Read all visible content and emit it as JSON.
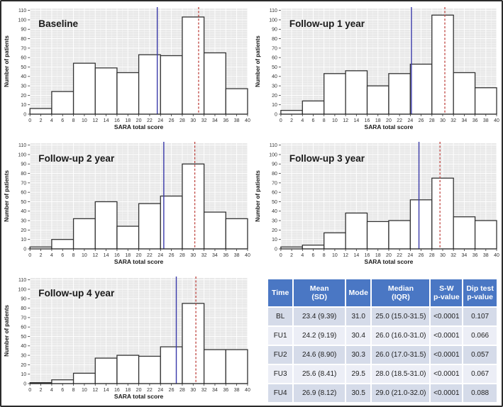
{
  "figure": {
    "xlabel": "SARA total score",
    "ylabel": "Number of patients"
  },
  "axes": {
    "xlim": [
      0,
      40
    ],
    "ylim": [
      0,
      112
    ],
    "x_ticks": [
      0,
      2,
      4,
      6,
      8,
      10,
      12,
      14,
      16,
      18,
      20,
      22,
      24,
      26,
      28,
      30,
      32,
      34,
      36,
      38,
      40
    ],
    "y_ticks": [
      0,
      10,
      20,
      30,
      40,
      50,
      60,
      70,
      80,
      90,
      100,
      110
    ],
    "grid": true,
    "legend": "none"
  },
  "chart_data": [
    {
      "type": "bar",
      "id": "baseline",
      "title": "Baseline",
      "xlabel": "SARA total score",
      "ylabel": "Number of patients",
      "bin_start": 0,
      "bin_width": 4,
      "categories": [
        "0-4",
        "4-8",
        "8-12",
        "12-16",
        "16-20",
        "20-24",
        "24-28",
        "28-32",
        "32-36",
        "36-40"
      ],
      "values": [
        6,
        24,
        54,
        49,
        44,
        63,
        62,
        103,
        65,
        27
      ],
      "mean_line": 23.4,
      "mode_line": 31.0
    },
    {
      "type": "bar",
      "id": "followup-1-year",
      "title": "Follow-up 1 year",
      "xlabel": "SARA total score",
      "ylabel": "Number of patients",
      "bin_start": 0,
      "bin_width": 4,
      "categories": [
        "0-4",
        "4-8",
        "8-12",
        "12-16",
        "16-20",
        "20-24",
        "24-28",
        "28-32",
        "32-36",
        "36-40"
      ],
      "values": [
        4,
        14,
        43,
        46,
        30,
        43,
        53,
        105,
        44,
        28
      ],
      "mean_line": 24.2,
      "mode_line": 30.4
    },
    {
      "type": "bar",
      "id": "followup-2-year",
      "title": "Follow-up 2 year",
      "xlabel": "SARA total score",
      "ylabel": "Number of patients",
      "bin_start": 0,
      "bin_width": 4,
      "categories": [
        "0-4",
        "4-8",
        "8-12",
        "12-16",
        "16-20",
        "20-24",
        "24-28",
        "28-32",
        "32-36",
        "36-40"
      ],
      "values": [
        2,
        10,
        32,
        50,
        24,
        48,
        56,
        90,
        39,
        32
      ],
      "mean_line": 24.6,
      "mode_line": 30.3
    },
    {
      "type": "bar",
      "id": "followup-3-year",
      "title": "Follow-up 3 year",
      "xlabel": "SARA total score",
      "ylabel": "Number of patients",
      "bin_start": 0,
      "bin_width": 4,
      "categories": [
        "0-4",
        "4-8",
        "8-12",
        "12-16",
        "16-20",
        "20-24",
        "24-28",
        "28-32",
        "32-36",
        "36-40"
      ],
      "values": [
        2,
        4,
        17,
        38,
        29,
        30,
        52,
        75,
        34,
        30
      ],
      "mean_line": 25.6,
      "mode_line": 29.5
    },
    {
      "type": "bar",
      "id": "followup-4-year",
      "title": "Follow-up 4 year",
      "xlabel": "SARA total score",
      "ylabel": "Number of patients",
      "bin_start": 0,
      "bin_width": 4,
      "categories": [
        "0-4",
        "4-8",
        "8-12",
        "12-16",
        "16-20",
        "20-24",
        "24-28",
        "28-32",
        "32-36",
        "36-40"
      ],
      "values": [
        1,
        4,
        11,
        27,
        30,
        29,
        39,
        85,
        36,
        36
      ],
      "mean_line": 26.9,
      "mode_line": 30.5
    }
  ],
  "table": {
    "headers": [
      "Time",
      "Mean\n(SD)",
      "Mode",
      "Median\n(IQR)",
      "S-W\np-value",
      "Dip test\np-value"
    ],
    "rows": [
      [
        "BL",
        "23.4 (9.39)",
        "31.0",
        "25.0 (15.0-31.5)",
        "<0.0001",
        "0.107"
      ],
      [
        "FU1",
        "24.2 (9.19)",
        "30.4",
        "26.0 (16.0-31.0)",
        "<0.0001",
        "0.066"
      ],
      [
        "FU2",
        "24.6 (8.90)",
        "30.3",
        "26.0 (17.0-31.5)",
        "<0.0001",
        "0.057"
      ],
      [
        "FU3",
        "25.6 (8.41)",
        "29.5",
        "28.0 (18.5-31.0)",
        "<0.0001",
        "0.067"
      ],
      [
        "FU4",
        "26.9 (8.12)",
        "30.5",
        "29.0 (21.0-32.0)",
        "<0.0001",
        "0.088"
      ]
    ]
  },
  "colors": {
    "panel_bg": "#e9e9e9",
    "grid_major": "#ffffff",
    "grid_minor": "#f2f2f2",
    "bar_fill": "#ffffff",
    "bar_stroke": "#333333",
    "mean_line": "#3b3baa",
    "mode_line": "#bf4540",
    "axis_line": "#1a1a1a",
    "tick_text": "#333333",
    "title_text": "#1a1a1a",
    "header_bg": "#4a77c4",
    "header_text": "#ffffff",
    "row_odd": "#d5dbe9",
    "row_even": "#eceef6",
    "frame": "#2b2b2b"
  }
}
